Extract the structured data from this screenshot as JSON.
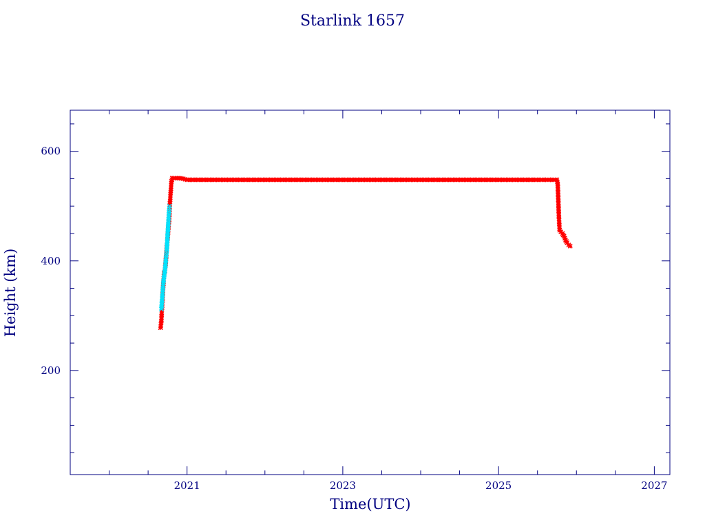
{
  "chart_data": {
    "type": "scatter",
    "title": "Starlink 1657",
    "xlabel": "Time(UTC)",
    "ylabel": "Height (km)",
    "xlim": [
      2019.5,
      2027.2
    ],
    "ylim": [
      10,
      675
    ],
    "x_ticks": [
      2021,
      2023,
      2025,
      2027
    ],
    "x_tick_labels": [
      "2021",
      "2023",
      "2025",
      "2027"
    ],
    "y_ticks": [
      200,
      400,
      600
    ],
    "y_tick_labels": [
      "200",
      "400",
      "600"
    ],
    "grid": false,
    "series": [
      {
        "color": "#ff0000",
        "marker": "asterisk",
        "points": [
          [
            2020.66,
            278
          ],
          [
            2020.67,
            290
          ],
          [
            2020.675,
            305
          ],
          [
            2020.68,
            318
          ],
          [
            2020.685,
            330
          ],
          [
            2020.69,
            345
          ],
          [
            2020.695,
            355
          ],
          [
            2020.7,
            365
          ],
          [
            2020.705,
            378
          ],
          [
            2020.715,
            382
          ],
          [
            2020.725,
            395
          ],
          [
            2020.74,
            425
          ],
          [
            2020.75,
            440
          ],
          [
            2020.76,
            460
          ],
          [
            2020.77,
            475
          ],
          [
            2020.78,
            505
          ],
          [
            2020.785,
            515
          ],
          [
            2020.79,
            525
          ],
          [
            2020.795,
            535
          ],
          [
            2020.8,
            545
          ],
          [
            2020.81,
            551
          ],
          [
            2020.85,
            551
          ],
          [
            2020.9,
            551
          ],
          [
            2020.95,
            550
          ],
          [
            2021.0,
            548
          ],
          [
            2021.5,
            548
          ],
          [
            2022.0,
            548
          ],
          [
            2022.5,
            548
          ],
          [
            2023.0,
            548
          ],
          [
            2023.5,
            548
          ],
          [
            2024.0,
            548
          ],
          [
            2024.5,
            548
          ],
          [
            2025.0,
            548
          ],
          [
            2025.5,
            548
          ],
          [
            2025.75,
            548
          ],
          [
            2025.76,
            540
          ],
          [
            2025.765,
            520
          ],
          [
            2025.77,
            500
          ],
          [
            2025.775,
            480
          ],
          [
            2025.78,
            465
          ],
          [
            2025.785,
            456
          ],
          [
            2025.8,
            453
          ],
          [
            2025.82,
            450
          ],
          [
            2025.84,
            445
          ],
          [
            2025.86,
            438
          ],
          [
            2025.88,
            433
          ],
          [
            2025.9,
            429
          ],
          [
            2025.92,
            427
          ]
        ]
      },
      {
        "color": "#00e5ff",
        "marker": "cross",
        "points": [
          [
            2020.67,
            312
          ],
          [
            2020.685,
            338
          ],
          [
            2020.695,
            360
          ],
          [
            2020.72,
            388
          ],
          [
            2020.73,
            405
          ],
          [
            2020.735,
            412
          ],
          [
            2020.74,
            420
          ],
          [
            2020.76,
            470
          ],
          [
            2020.765,
            482
          ],
          [
            2020.77,
            492
          ],
          [
            2020.775,
            500
          ]
        ]
      }
    ]
  }
}
